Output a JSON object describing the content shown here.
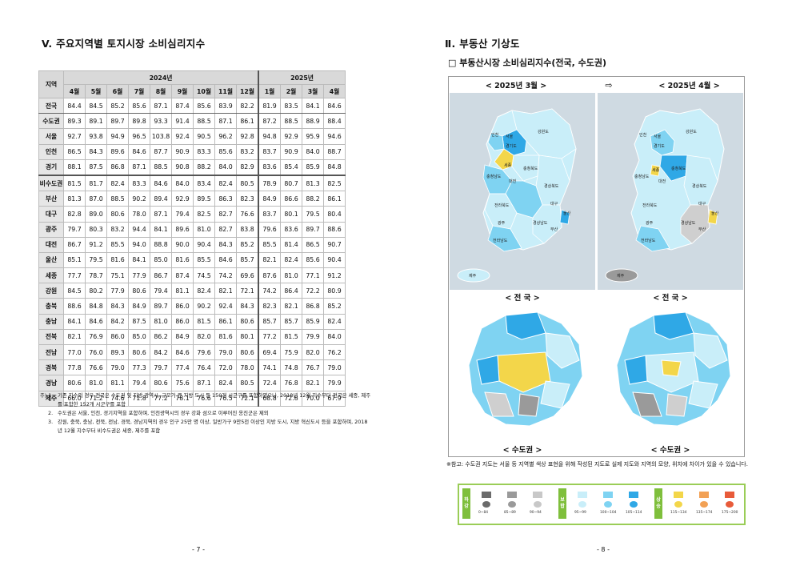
{
  "left_page": {
    "section_title": "V. 주요지역별 토지시장 소비심리지수",
    "table": {
      "corner": "지역",
      "years": [
        {
          "label": "2024년",
          "span": 9
        },
        {
          "label": "2025년",
          "span": 4
        }
      ],
      "months": [
        "4월",
        "5월",
        "6월",
        "7월",
        "8월",
        "9월",
        "10월",
        "11월",
        "12월",
        "1월",
        "2월",
        "3월",
        "4월"
      ],
      "rows": [
        {
          "region": "전국",
          "values": [
            "84.4",
            "84.5",
            "85.2",
            "85.6",
            "87.1",
            "87.4",
            "85.6",
            "83.9",
            "82.2",
            "81.9",
            "83.5",
            "84.1",
            "84.6"
          ]
        },
        {
          "region": "수도권",
          "values": [
            "89.3",
            "89.1",
            "89.7",
            "89.8",
            "93.3",
            "91.4",
            "88.5",
            "87.1",
            "86.1",
            "87.2",
            "88.5",
            "88.9",
            "88.4"
          ]
        },
        {
          "region": "서울",
          "values": [
            "92.7",
            "93.8",
            "94.9",
            "96.5",
            "103.8",
            "92.4",
            "90.5",
            "96.2",
            "92.8",
            "94.8",
            "92.9",
            "95.9",
            "94.6"
          ]
        },
        {
          "region": "인천",
          "values": [
            "86.5",
            "84.3",
            "89.6",
            "84.6",
            "87.7",
            "90.9",
            "83.3",
            "85.6",
            "83.2",
            "83.7",
            "90.9",
            "84.0",
            "88.7"
          ]
        },
        {
          "region": "경기",
          "values": [
            "88.1",
            "87.5",
            "86.8",
            "87.1",
            "88.5",
            "90.8",
            "88.2",
            "84.0",
            "82.9",
            "83.6",
            "85.4",
            "85.9",
            "84.8"
          ]
        },
        {
          "region": "비수도권",
          "values": [
            "81.5",
            "81.7",
            "82.4",
            "83.3",
            "84.6",
            "84.0",
            "83.4",
            "82.4",
            "80.5",
            "78.9",
            "80.7",
            "81.3",
            "82.5"
          ]
        },
        {
          "region": "부산",
          "values": [
            "81.3",
            "87.0",
            "88.5",
            "90.2",
            "89.4",
            "92.9",
            "89.5",
            "86.3",
            "82.3",
            "84.9",
            "86.6",
            "88.2",
            "86.1"
          ]
        },
        {
          "region": "대구",
          "values": [
            "82.8",
            "89.0",
            "80.6",
            "78.0",
            "87.1",
            "79.4",
            "82.5",
            "82.7",
            "76.6",
            "83.7",
            "80.1",
            "79.5",
            "80.4"
          ]
        },
        {
          "region": "광주",
          "values": [
            "79.7",
            "80.3",
            "83.2",
            "94.4",
            "84.1",
            "89.6",
            "81.0",
            "82.7",
            "83.8",
            "79.6",
            "83.6",
            "89.7",
            "88.6"
          ]
        },
        {
          "region": "대전",
          "values": [
            "86.7",
            "91.2",
            "85.5",
            "94.0",
            "88.8",
            "90.0",
            "90.4",
            "84.3",
            "85.2",
            "85.5",
            "81.4",
            "86.5",
            "90.7"
          ]
        },
        {
          "region": "울산",
          "values": [
            "85.1",
            "79.5",
            "81.6",
            "84.1",
            "85.0",
            "81.6",
            "85.5",
            "84.6",
            "85.7",
            "82.1",
            "82.4",
            "85.6",
            "90.4"
          ]
        },
        {
          "region": "세종",
          "values": [
            "77.7",
            "78.7",
            "75.1",
            "77.9",
            "86.7",
            "87.4",
            "74.5",
            "74.2",
            "69.6",
            "87.6",
            "81.0",
            "77.1",
            "91.2"
          ]
        },
        {
          "region": "강원",
          "values": [
            "84.5",
            "80.2",
            "77.9",
            "80.6",
            "79.4",
            "81.1",
            "82.4",
            "82.1",
            "72.1",
            "74.2",
            "86.4",
            "72.2",
            "80.9"
          ]
        },
        {
          "region": "충북",
          "values": [
            "88.6",
            "84.8",
            "84.3",
            "84.9",
            "89.7",
            "86.0",
            "90.2",
            "92.4",
            "84.3",
            "82.3",
            "82.1",
            "86.8",
            "85.2"
          ]
        },
        {
          "region": "충남",
          "values": [
            "84.1",
            "84.6",
            "84.2",
            "87.5",
            "81.0",
            "86.0",
            "81.5",
            "86.1",
            "80.6",
            "85.7",
            "85.7",
            "85.9",
            "82.4"
          ]
        },
        {
          "region": "전북",
          "values": [
            "82.1",
            "76.9",
            "86.0",
            "85.0",
            "86.2",
            "84.9",
            "82.0",
            "81.6",
            "80.1",
            "77.2",
            "81.5",
            "79.9",
            "84.0"
          ]
        },
        {
          "region": "전남",
          "values": [
            "77.0",
            "76.0",
            "89.3",
            "80.6",
            "84.2",
            "84.6",
            "79.6",
            "79.0",
            "80.6",
            "69.4",
            "75.9",
            "82.0",
            "76.2"
          ]
        },
        {
          "region": "경북",
          "values": [
            "77.8",
            "76.6",
            "79.0",
            "77.3",
            "79.7",
            "77.4",
            "76.4",
            "72.0",
            "78.0",
            "74.1",
            "74.8",
            "76.7",
            "79.0"
          ]
        },
        {
          "region": "경남",
          "values": [
            "80.6",
            "81.0",
            "81.1",
            "79.4",
            "80.6",
            "75.6",
            "87.1",
            "82.4",
            "80.5",
            "72.4",
            "76.8",
            "82.1",
            "79.9"
          ]
        },
        {
          "region": "제주",
          "values": [
            "66.0",
            "71.2",
            "74.6",
            "71.8",
            "77.2",
            "78.1",
            "76.6",
            "76.5",
            "72.1",
            "68.8",
            "72.8",
            "70.0",
            "67.9"
          ]
        }
      ]
    },
    "notes": [
      {
        "key": "주) 1.",
        "text": "기존 지수의 경우 전국은 수도권 및 지방 광역시, 규모가 큰 지방 도시 등 150개 시군구를 포함하였으나, 2018년 12월 지수부터 전국은 세종, 제주를 포함한 152개 시군구를 포함"
      },
      {
        "key": "2.",
        "text": "수도권은 서울, 인천, 경기지역을 포함하며, 인천광역시의 경우 강화 섬으로 이루어진 옹진군은 제외"
      },
      {
        "key": "3.",
        "text": "강원, 충북, 충남, 전북, 전남, 경북, 경남지역의 경우 인구 25만 명 이상, 일반가구 9만5천 이상인 지방 도시, 지방 혁신도시 등을 포함하며, 2018년 12월 지수부터 비수도권은 세종, 제주를 포함"
      }
    ],
    "page_number": "- 7 -"
  },
  "right_page": {
    "section_title": "Ⅱ. 부동산 기상도",
    "subtitle": "□ 부동산시장 소비심리지수(전국, 수도권)",
    "map_headers": {
      "left": "< 2025년 3월 >",
      "arrow": "⇨",
      "right": "< 2025년 4월 >"
    },
    "captions": {
      "national": "< 전  국 >",
      "capital": "< 수도권 >"
    },
    "national_map_labels": [
      "인천",
      "서울",
      "경기도",
      "강원도",
      "세종",
      "충청북도",
      "충청남도",
      "대전",
      "경상북도",
      "대구",
      "전라북도",
      "울산",
      "광주",
      "경상남도",
      "부산",
      "전라남도",
      "제주"
    ],
    "ref_note": "※참고: 수도권 지도는 서울 등 지역별 색상 표현을 위해 작성된 지도로 실제 지도와 지역의 모양, 위치에 차이가 있을 수 있습니다.",
    "legend": {
      "groups": [
        {
          "name": "하강",
          "items": [
            {
              "range": "0~84",
              "color": "#6b6b6b"
            },
            {
              "range": "85~89",
              "color": "#9a9a9a"
            },
            {
              "range": "90~94",
              "color": "#c8c8c8"
            }
          ]
        },
        {
          "name": "보합",
          "items": [
            {
              "range": "95~99",
              "color": "#c9eef9"
            },
            {
              "range": "100~104",
              "color": "#7fd3f2"
            },
            {
              "range": "105~114",
              "color": "#2fa8e6"
            }
          ]
        },
        {
          "name": "상승",
          "items": [
            {
              "range": "115~134",
              "color": "#f3d64a"
            },
            {
              "range": "135~174",
              "color": "#f2a155"
            },
            {
              "range": "175~200",
              "color": "#e85b3a"
            }
          ]
        }
      ]
    },
    "page_number": "- 8 -"
  }
}
